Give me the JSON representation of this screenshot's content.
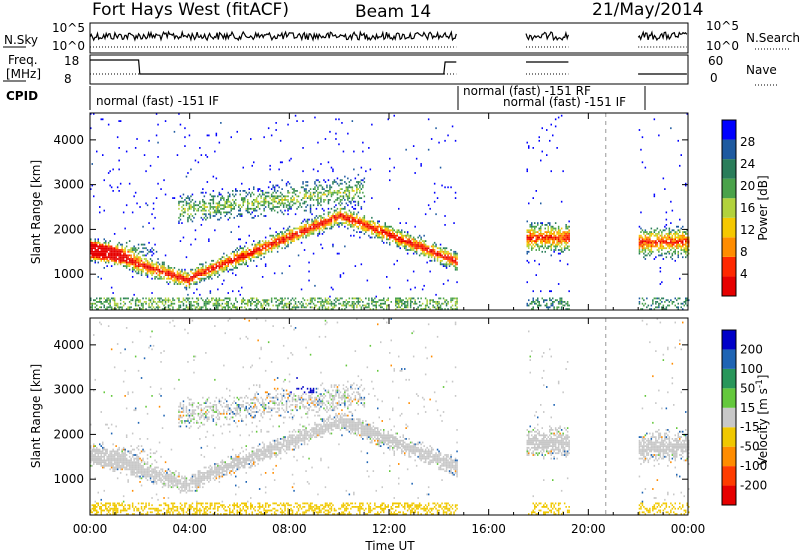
{
  "header": {
    "title": "Fort Hays West (fitACF)",
    "beam": "Beam 14",
    "date": "21/May/2014"
  },
  "panels": {
    "nsky_label": "N.Sky",
    "nsky_ticks": [
      "10^5",
      "10^0"
    ],
    "nsearch_label": "N.Search",
    "freq_label_1": "Freq.",
    "freq_label_2": "[MHz]",
    "freq_ticks": [
      "18",
      "8"
    ],
    "nave_ticks": [
      "60",
      "0"
    ],
    "nave_label": "Nave",
    "cpid_label": "CPID",
    "cpid_entries": [
      "normal (fast) -151 IF",
      "normal (fast) -151 RF",
      "normal (fast) -151 IF"
    ]
  },
  "colors": {
    "power": [
      "#0000ff",
      "#1e5aa0",
      "#2a7d5a",
      "#4aa24a",
      "#b2d23c",
      "#f5c800",
      "#ff8c00",
      "#ff2800",
      "#e60000"
    ],
    "velocity": [
      "#0000c8",
      "#1e64b4",
      "#28965a",
      "#64c83c",
      "#c8c8c8",
      "#f0c800",
      "#ff8c00",
      "#ff3c00",
      "#e60000"
    ]
  },
  "chart_data": [
    {
      "type": "heatmap",
      "name": "power",
      "xlabel": "",
      "ylabel": "Slant Range [km]",
      "y_ticks": [
        "1000",
        "2000",
        "3000",
        "4000"
      ],
      "ylim": [
        200,
        4600
      ],
      "xlim_hours": [
        0,
        24
      ],
      "colorbar_label": "Power [dB]",
      "colorbar_ticks": [
        "28",
        "24",
        "20",
        "16",
        "12",
        "8",
        "4"
      ],
      "data_gaps_ut": [
        [
          "14:45",
          "17:30"
        ],
        [
          "19:15",
          "22:00"
        ]
      ]
    },
    {
      "type": "heatmap",
      "name": "velocity",
      "xlabel": "Time UT",
      "ylabel": "Slant Range [km]",
      "y_ticks": [
        "1000",
        "2000",
        "3000",
        "4000"
      ],
      "ylim": [
        200,
        4600
      ],
      "xlim_hours": [
        0,
        24
      ],
      "colorbar_label": "Velocity [m s",
      "colorbar_label_sup": "-1",
      "colorbar_label_end": "]",
      "colorbar_ticks": [
        "200",
        "100",
        "50",
        "15",
        "-15",
        "-50",
        "-100",
        "-200"
      ],
      "x_ticks": [
        "00:00",
        "04:00",
        "08:00",
        "12:00",
        "16:00",
        "20:00",
        "00:00"
      ]
    }
  ]
}
